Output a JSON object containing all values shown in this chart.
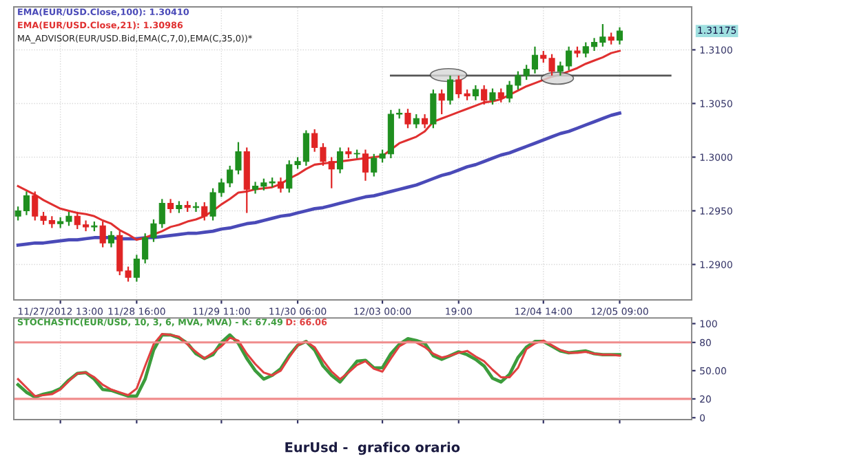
{
  "chart_data": [
    {
      "type": "candlestick",
      "categories": [
        null,
        null,
        null,
        null,
        null,
        "11/27/2012 13:00",
        null,
        null,
        null,
        null,
        null,
        null,
        null,
        null,
        "11/28 16:00",
        null,
        null,
        null,
        null,
        null,
        null,
        null,
        null,
        null,
        "11/29 11:00",
        null,
        null,
        null,
        null,
        null,
        null,
        null,
        null,
        "11/30 06:00",
        null,
        null,
        null,
        null,
        null,
        null,
        null,
        null,
        null,
        "12/03 00:00",
        null,
        null,
        null,
        null,
        null,
        null,
        null,
        null,
        "19:00",
        null,
        null,
        null,
        null,
        null,
        null,
        null,
        null,
        null,
        "12/04 14:00",
        null,
        null,
        null,
        null,
        null,
        null,
        null,
        null,
        "12/05 09:00",
        null,
        null,
        null,
        null,
        null,
        null,
        null,
        null
      ],
      "ohlc": [
        [
          1.2945,
          1.2954,
          1.2941,
          1.295
        ],
        [
          1.295,
          1.2968,
          1.2946,
          1.2964
        ],
        [
          1.2964,
          1.2968,
          1.2941,
          1.2945
        ],
        [
          1.2945,
          1.2949,
          1.2937,
          1.2941
        ],
        [
          1.2941,
          1.2945,
          1.2934,
          1.2938
        ],
        [
          1.2938,
          1.2944,
          1.2934,
          1.294
        ],
        [
          1.294,
          1.2949,
          1.2936,
          1.2945
        ],
        [
          1.2945,
          1.2949,
          1.2933,
          1.2937
        ],
        [
          1.2937,
          1.2941,
          1.2931,
          1.2935
        ],
        [
          1.2935,
          1.294,
          1.2931,
          1.2936
        ],
        [
          1.2936,
          1.294,
          1.2916,
          1.292
        ],
        [
          1.292,
          1.2931,
          1.2916,
          1.2927
        ],
        [
          1.2927,
          1.2931,
          1.289,
          1.2894
        ],
        [
          1.2894,
          1.2898,
          1.2884,
          1.2888
        ],
        [
          1.2888,
          1.2909,
          1.2884,
          1.2905
        ],
        [
          1.2905,
          1.2929,
          1.2901,
          1.2925
        ],
        [
          1.2925,
          1.2942,
          1.2921,
          1.2938
        ],
        [
          1.2938,
          1.2961,
          1.2934,
          1.2957
        ],
        [
          1.2957,
          1.2961,
          1.2948,
          1.2952
        ],
        [
          1.2952,
          1.2959,
          1.2948,
          1.2955
        ],
        [
          1.2955,
          1.2959,
          1.2949,
          1.2953
        ],
        [
          1.2953,
          1.2958,
          1.2949,
          1.2954
        ],
        [
          1.2954,
          1.2958,
          1.2941,
          1.2945
        ],
        [
          1.2945,
          1.2971,
          1.2941,
          1.2967
        ],
        [
          1.2967,
          1.298,
          1.2963,
          1.2976
        ],
        [
          1.2976,
          1.2992,
          1.2972,
          1.2988
        ],
        [
          1.2988,
          1.3014,
          1.2984,
          1.3005
        ],
        [
          1.3005,
          1.3009,
          1.2948,
          1.297
        ],
        [
          1.297,
          1.2977,
          1.2966,
          1.2973
        ],
        [
          1.2973,
          1.298,
          1.2969,
          1.2976
        ],
        [
          1.2976,
          1.2981,
          1.2972,
          1.2977
        ],
        [
          1.2977,
          1.2981,
          1.2967,
          1.2971
        ],
        [
          1.2971,
          1.2997,
          1.2967,
          1.2993
        ],
        [
          1.2993,
          1.3,
          1.2989,
          1.2996
        ],
        [
          1.2996,
          1.3025,
          1.2992,
          1.3022
        ],
        [
          1.3022,
          1.3026,
          1.3005,
          1.3009
        ],
        [
          1.3009,
          1.3013,
          1.2992,
          1.2996
        ],
        [
          1.2996,
          1.3,
          1.2971,
          1.2989
        ],
        [
          1.2989,
          1.3009,
          1.2985,
          1.3005
        ],
        [
          1.3005,
          1.3009,
          1.2999,
          1.3003
        ],
        [
          1.3003,
          1.3007,
          1.2999,
          1.3003
        ],
        [
          1.3003,
          1.3007,
          1.2978,
          1.2986
        ],
        [
          1.2986,
          1.3003,
          1.2982,
          1.2999
        ],
        [
          1.2999,
          1.3007,
          1.2995,
          1.3003
        ],
        [
          1.3003,
          1.3044,
          1.2999,
          1.304
        ],
        [
          1.304,
          1.3045,
          1.3036,
          1.3041
        ],
        [
          1.3041,
          1.3045,
          1.3027,
          1.3031
        ],
        [
          1.3031,
          1.304,
          1.3027,
          1.3036
        ],
        [
          1.3036,
          1.304,
          1.3027,
          1.3031
        ],
        [
          1.3031,
          1.3063,
          1.3027,
          1.3059
        ],
        [
          1.3059,
          1.3063,
          1.304,
          1.3053
        ],
        [
          1.3053,
          1.3076,
          1.3049,
          1.3072
        ],
        [
          1.3072,
          1.3076,
          1.3055,
          1.3059
        ],
        [
          1.3059,
          1.3063,
          1.3053,
          1.3057
        ],
        [
          1.3057,
          1.3067,
          1.3053,
          1.3063
        ],
        [
          1.3063,
          1.3067,
          1.3049,
          1.3053
        ],
        [
          1.3053,
          1.3064,
          1.3049,
          1.306
        ],
        [
          1.306,
          1.3064,
          1.3051,
          1.3055
        ],
        [
          1.3055,
          1.3071,
          1.3051,
          1.3067
        ],
        [
          1.3067,
          1.308,
          1.3063,
          1.3076
        ],
        [
          1.3076,
          1.3086,
          1.3072,
          1.3082
        ],
        [
          1.3082,
          1.3103,
          1.3078,
          1.3095
        ],
        [
          1.3095,
          1.3099,
          1.3088,
          1.3092
        ],
        [
          1.3092,
          1.3096,
          1.3076,
          1.308
        ],
        [
          1.308,
          1.3089,
          1.3076,
          1.3085
        ],
        [
          1.3085,
          1.3103,
          1.3081,
          1.3099
        ],
        [
          1.3099,
          1.3103,
          1.3093,
          1.3097
        ],
        [
          1.3097,
          1.3107,
          1.3093,
          1.3103
        ],
        [
          1.3103,
          1.3111,
          1.3099,
          1.3107
        ],
        [
          1.3107,
          1.3124,
          1.3103,
          1.3112
        ],
        [
          1.3112,
          1.3116,
          1.3105,
          1.3109
        ],
        [
          1.3109,
          1.3121,
          1.3105,
          1.31175
        ],
        null,
        null,
        null,
        null,
        null,
        null,
        null,
        null
      ],
      "series": [
        {
          "name": "EMA(EUR/USD.Close,100): 1.30410",
          "type": "line",
          "color": "#4a4ab8",
          "values": [
            1.2918,
            1.2919,
            1.292,
            1.292,
            1.2921,
            1.2922,
            1.2923,
            1.2923,
            1.2924,
            1.2925,
            1.2925,
            1.2925,
            1.2924,
            1.2924,
            1.2924,
            1.2925,
            1.2925,
            1.2926,
            1.2927,
            1.2928,
            1.2929,
            1.2929,
            1.293,
            1.2931,
            1.2933,
            1.2934,
            1.2936,
            1.2938,
            1.2939,
            1.2941,
            1.2943,
            1.2945,
            1.2946,
            1.2948,
            1.295,
            1.2952,
            1.2953,
            1.2955,
            1.2957,
            1.2959,
            1.2961,
            1.2963,
            1.2964,
            1.2966,
            1.2968,
            1.297,
            1.2972,
            1.2974,
            1.2977,
            1.298,
            1.2983,
            1.2985,
            1.2988,
            1.2991,
            1.2993,
            1.2996,
            1.2999,
            1.3002,
            1.3004,
            1.3007,
            1.301,
            1.3013,
            1.3016,
            1.3019,
            1.3022,
            1.3024,
            1.3027,
            1.303,
            1.3033,
            1.3036,
            1.3039,
            1.3041,
            null,
            null,
            null,
            null,
            null,
            null,
            null,
            null
          ]
        },
        {
          "name": "EMA(EUR/USD.Close,21): 1.30986",
          "type": "line",
          "color": "#e03030",
          "values": [
            1.2973,
            1.2969,
            1.2965,
            1.296,
            1.2956,
            1.2952,
            1.295,
            1.2948,
            1.2947,
            1.2945,
            1.2941,
            1.2938,
            1.2932,
            1.2928,
            1.2923,
            1.2925,
            1.2928,
            1.2931,
            1.2935,
            1.2937,
            1.294,
            1.2942,
            1.2945,
            1.295,
            1.2956,
            1.2961,
            1.2967,
            1.2968,
            1.297,
            1.2971,
            1.2972,
            1.2975,
            1.298,
            1.2984,
            1.2989,
            1.2993,
            1.2994,
            1.2995,
            1.2996,
            1.2997,
            1.2998,
            1.2999,
            1.3,
            1.3001,
            1.3007,
            1.3013,
            1.3016,
            1.3019,
            1.3024,
            1.3033,
            1.3036,
            1.3039,
            1.3042,
            1.3045,
            1.3048,
            1.3051,
            1.3052,
            1.3054,
            1.3058,
            1.3062,
            1.3066,
            1.3069,
            1.3072,
            1.3075,
            1.3077,
            1.308,
            1.3083,
            1.3087,
            1.309,
            1.3093,
            1.3097,
            1.3099,
            null,
            null,
            null,
            null,
            null,
            null,
            null,
            null
          ]
        },
        {
          "type": "line",
          "color": "#555555",
          "values": [
            null,
            null,
            null,
            null,
            null,
            null,
            null,
            null,
            null,
            null,
            null,
            null,
            null,
            null,
            null,
            null,
            null,
            null,
            null,
            null,
            null,
            null,
            null,
            null,
            null,
            null,
            null,
            null,
            null,
            null,
            null,
            null,
            null,
            null,
            null,
            null,
            null,
            null,
            null,
            null,
            null,
            null,
            null,
            null,
            1.3076,
            1.3076,
            1.3076,
            1.3076,
            1.3076,
            1.3076,
            1.3076,
            1.3076,
            1.3076,
            1.3076,
            1.3076,
            1.3076,
            1.3076,
            1.3076,
            1.3076,
            1.3076,
            1.3076,
            1.3076,
            1.3076,
            1.3076,
            1.3076,
            1.3076,
            1.3076,
            1.3076,
            1.3076,
            1.3076,
            1.3076,
            1.3076,
            1.3076,
            1.3076,
            1.3076,
            1.3076,
            1.3076,
            1.3076,
            null,
            null
          ]
        }
      ],
      "ylim": [
        1.2867,
        1.314
      ],
      "yticks": [
        {
          "value": 1.29,
          "label": "1.2900"
        },
        {
          "value": 1.295,
          "label": "1.2950"
        },
        {
          "value": 1.3,
          "label": "1.3000"
        },
        {
          "value": 1.305,
          "label": "1.3050"
        },
        {
          "value": 1.31,
          "label": "1.3100"
        }
      ],
      "grid": true,
      "legend": "top left",
      "annotations": [
        "MA_ADVISOR(EUR/USD.Bid,EMA(C,7,0),EMA(C,35,0))*",
        "1.31175"
      ]
    },
    {
      "type": "line",
      "categories": [
        null,
        null,
        null,
        null,
        null,
        null,
        null,
        null,
        null,
        null,
        null,
        null,
        null,
        null,
        null,
        null,
        null,
        null,
        null,
        null,
        null,
        null,
        null,
        null,
        null,
        null,
        null,
        null,
        null,
        null,
        null,
        null,
        null,
        null,
        null,
        null,
        null,
        null,
        null,
        null,
        null,
        null,
        null,
        null,
        null,
        null,
        null,
        null,
        null,
        null,
        null,
        null,
        null,
        null,
        null,
        null,
        null,
        null,
        null,
        null,
        null,
        null,
        null,
        null,
        null,
        null,
        null,
        null,
        null,
        null,
        null,
        null,
        null,
        null,
        null,
        null,
        null,
        null,
        null,
        null
      ],
      "series": [
        {
          "name": "STOCHASTIC(EUR/USD, 10, 3, 6, MVA, MVA) - K: 67.49",
          "color": "#3c9c3c",
          "values": [
            35,
            27,
            22,
            25,
            27,
            31,
            40,
            47,
            48,
            41,
            30,
            29,
            26,
            23,
            23,
            41,
            72,
            88,
            88,
            85,
            79,
            68,
            63,
            67,
            80,
            88,
            79,
            63,
            50,
            41,
            45,
            52,
            66,
            77,
            81,
            72,
            55,
            45,
            38,
            49,
            60,
            61,
            53,
            53,
            68,
            78,
            84,
            82,
            79,
            66,
            62,
            66,
            70,
            67,
            62,
            55,
            42,
            38,
            46,
            64,
            75,
            81,
            81,
            76,
            71,
            69,
            70,
            71,
            68,
            67,
            67,
            67,
            null,
            null,
            null,
            null,
            null,
            null,
            null,
            null
          ]
        },
        {
          "name": "D: 66.06",
          "color": "#e04040",
          "values": [
            41,
            32,
            23,
            24,
            25,
            30,
            39,
            47,
            48,
            43,
            35,
            30,
            27,
            24,
            31,
            55,
            78,
            89,
            88,
            86,
            78,
            70,
            63,
            69,
            76,
            85,
            82,
            68,
            57,
            48,
            45,
            50,
            64,
            77,
            81,
            75,
            61,
            49,
            41,
            48,
            56,
            60,
            52,
            49,
            63,
            76,
            81,
            80,
            75,
            68,
            64,
            66,
            69,
            71,
            65,
            60,
            51,
            43,
            43,
            53,
            73,
            79,
            82,
            77,
            72,
            69,
            69,
            70,
            68,
            67,
            67,
            66,
            null,
            null,
            null,
            null,
            null,
            null,
            null,
            null
          ]
        }
      ],
      "ylim": [
        -2,
        106
      ],
      "yticks": [
        0,
        20,
        {
          "value": 50,
          "label": "50.00"
        },
        80,
        100
      ],
      "grid": "x",
      "legend": "top left",
      "ref_lines": [
        {
          "axis": "y",
          "value": 80,
          "color": "#f08c8c"
        },
        {
          "axis": "y",
          "value": 20,
          "color": "#f08c8c"
        }
      ],
      "annotations": [
        "EurUsd -  grafico orario"
      ]
    }
  ]
}
